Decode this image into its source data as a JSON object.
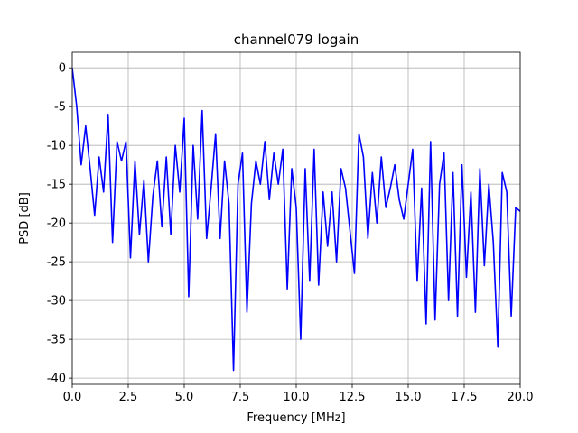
{
  "chart_data": {
    "type": "line",
    "title": "channel079 logain",
    "xlabel": "Frequency [MHz]",
    "ylabel": "PSD [dB]",
    "x": [
      0,
      0.2,
      0.4,
      0.6,
      0.8,
      1,
      1.2,
      1.4,
      1.6,
      1.8,
      2,
      2.2,
      2.4,
      2.6,
      2.8,
      3,
      3.2,
      3.4,
      3.6,
      3.8,
      4,
      4.2,
      4.4,
      4.6,
      4.8,
      5,
      5.2,
      5.4,
      5.6,
      5.8,
      6,
      6.2,
      6.4,
      6.6,
      6.8,
      7,
      7.2,
      7.4,
      7.6,
      7.8,
      8,
      8.2,
      8.4,
      8.6,
      8.8,
      9,
      9.2,
      9.4,
      9.6,
      9.8,
      10,
      10.2,
      10.4,
      10.6,
      10.8,
      11,
      11.2,
      11.4,
      11.6,
      11.8,
      12,
      12.2,
      12.4,
      12.6,
      12.8,
      13,
      13.2,
      13.4,
      13.6,
      13.8,
      14,
      14.2,
      14.4,
      14.6,
      14.8,
      15,
      15.2,
      15.4,
      15.6,
      15.8,
      16,
      16.2,
      16.4,
      16.6,
      16.8,
      17,
      17.2,
      17.4,
      17.6,
      17.8,
      18,
      18.2,
      18.4,
      18.6,
      18.8,
      19,
      19.2,
      19.4,
      19.6,
      19.8,
      20
    ],
    "series": [
      {
        "name": "channel079",
        "color": "#0000ff",
        "values": [
          0,
          -5,
          -12.5,
          -7.5,
          -13,
          -19,
          -11.5,
          -16,
          -6,
          -22.5,
          -9.5,
          -12,
          -9.5,
          -24.5,
          -12,
          -21.5,
          -14.5,
          -25,
          -16.5,
          -12,
          -20.5,
          -11.5,
          -21.5,
          -10,
          -16,
          -6.5,
          -29.5,
          -10,
          -19.5,
          -5.5,
          -22,
          -15.5,
          -8.5,
          -22,
          -12,
          -17.5,
          -39,
          -15,
          -11,
          -31.5,
          -17.5,
          -12,
          -15,
          -9.5,
          -17,
          -11,
          -15,
          -10.5,
          -28.5,
          -13,
          -18,
          -35,
          -13,
          -27.5,
          -10.5,
          -28,
          -16,
          -23,
          -16,
          -25,
          -13,
          -15.5,
          -21,
          -26.5,
          -8.5,
          -11.5,
          -22,
          -13.5,
          -20,
          -11.5,
          -18,
          -15.5,
          -12.5,
          -17,
          -19.5,
          -15,
          -10.5,
          -27.5,
          -15.5,
          -33,
          -9.5,
          -32.5,
          -15,
          -11,
          -30,
          -13.5,
          -32,
          -12.5,
          -27,
          -16,
          -31.5,
          -13,
          -25.5,
          -15,
          -22.5,
          -36,
          -13.5,
          -16,
          -32,
          -18,
          -18.5
        ]
      }
    ],
    "xlim": [
      0,
      20
    ],
    "ylim": [
      -40.8,
      2
    ],
    "xticks": [
      {
        "value": 0,
        "label": "0.0"
      },
      2.5,
      {
        "value": 5,
        "label": "5.0"
      },
      7.5,
      {
        "value": 10,
        "label": "10.0"
      },
      12.5,
      {
        "value": 15,
        "label": "15.0"
      },
      17.5,
      {
        "value": 20,
        "label": "20.0"
      }
    ],
    "yticks": [
      0,
      -5,
      -10,
      -15,
      -20,
      -25,
      -30,
      -35,
      -40
    ],
    "grid": true
  }
}
